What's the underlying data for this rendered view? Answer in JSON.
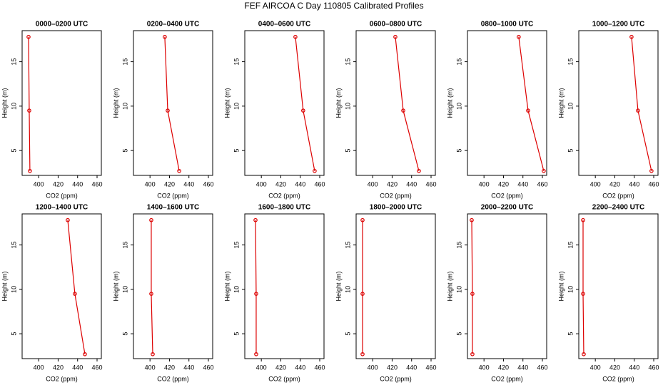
{
  "title": "FEF AIRCOA C  Day 110805  Calibrated Profiles",
  "chart_data": [
    {
      "type": "line",
      "title": "0000–0200 UTC",
      "x_label": "CO2 (ppm)",
      "y_label": "Height (m)",
      "color": "#dd0000",
      "x": [
        389.6,
        390.3,
        391
      ],
      "values": [
        17.8,
        9.5,
        2.7
      ],
      "xlim": [
        383,
        464.4
      ],
      "ylim": [
        2.2,
        18.5
      ],
      "xticks": [
        400,
        420,
        440,
        460
      ],
      "yticks": [
        5,
        10,
        15
      ]
    },
    {
      "type": "line",
      "title": "0200–0400 UTC",
      "x_label": "CO2 (ppm)",
      "y_label": "Height (m)",
      "color": "#dd0000",
      "x": [
        415.2,
        418.2,
        430
      ],
      "values": [
        17.8,
        9.5,
        2.7
      ],
      "xlim": [
        383,
        464.4
      ],
      "ylim": [
        2.2,
        18.5
      ],
      "xticks": [
        400,
        420,
        440,
        460
      ],
      "yticks": [
        5,
        10,
        15
      ]
    },
    {
      "type": "line",
      "title": "0400–0600 UTC",
      "x_label": "CO2 (ppm)",
      "y_label": "Height (m)",
      "color": "#dd0000",
      "x": [
        435,
        443,
        454.8
      ],
      "values": [
        17.8,
        9.5,
        2.7
      ],
      "xlim": [
        383,
        464.4
      ],
      "ylim": [
        2.2,
        18.5
      ],
      "xticks": [
        400,
        420,
        440,
        460
      ],
      "yticks": [
        5,
        10,
        15
      ]
    },
    {
      "type": "line",
      "title": "0600–0800 UTC",
      "x_label": "CO2 (ppm)",
      "y_label": "Height (m)",
      "color": "#dd0000",
      "x": [
        423.3,
        431.4,
        447.5
      ],
      "values": [
        17.8,
        9.5,
        2.7
      ],
      "xlim": [
        383,
        464.4
      ],
      "ylim": [
        2.2,
        18.5
      ],
      "xticks": [
        400,
        420,
        440,
        460
      ],
      "yticks": [
        5,
        10,
        15
      ]
    },
    {
      "type": "line",
      "title": "0800–1000 UTC",
      "x_label": "CO2 (ppm)",
      "y_label": "Height (m)",
      "color": "#dd0000",
      "x": [
        435.7,
        445.3,
        461.4
      ],
      "values": [
        17.8,
        9.5,
        2.7
      ],
      "xlim": [
        383,
        464.4
      ],
      "ylim": [
        2.2,
        18.5
      ],
      "xticks": [
        400,
        420,
        440,
        460
      ],
      "yticks": [
        5,
        10,
        15
      ]
    },
    {
      "type": "line",
      "title": "1000–1200 UTC",
      "x_label": "CO2 (ppm)",
      "y_label": "Height (m)",
      "color": "#dd0000",
      "x": [
        437.2,
        443.8,
        457.7
      ],
      "values": [
        17.8,
        9.5,
        2.7
      ],
      "xlim": [
        383,
        464.4
      ],
      "ylim": [
        2.2,
        18.5
      ],
      "xticks": [
        400,
        420,
        440,
        460
      ],
      "yticks": [
        5,
        10,
        15
      ]
    },
    {
      "type": "line",
      "title": "1200–1400 UTC",
      "x_label": "CO2 (ppm)",
      "y_label": "Height (m)",
      "color": "#dd0000",
      "x": [
        429.9,
        437.2,
        447.5
      ],
      "values": [
        17.8,
        9.5,
        2.7
      ],
      "xlim": [
        383,
        464.4
      ],
      "ylim": [
        2.2,
        18.5
      ],
      "xticks": [
        400,
        420,
        440,
        460
      ],
      "yticks": [
        5,
        10,
        15
      ]
    },
    {
      "type": "line",
      "title": "1400–1600 UTC",
      "x_label": "CO2 (ppm)",
      "y_label": "Height (m)",
      "color": "#dd0000",
      "x": [
        401.3,
        401.3,
        402.8
      ],
      "values": [
        17.8,
        9.5,
        2.7
      ],
      "xlim": [
        383,
        464.4
      ],
      "ylim": [
        2.2,
        18.5
      ],
      "xticks": [
        400,
        420,
        440,
        460
      ],
      "yticks": [
        5,
        10,
        15
      ]
    },
    {
      "type": "line",
      "title": "1600–1800 UTC",
      "x_label": "CO2 (ppm)",
      "y_label": "Height (m)",
      "color": "#dd0000",
      "x": [
        394,
        394.7,
        394.7
      ],
      "values": [
        17.8,
        9.5,
        2.7
      ],
      "xlim": [
        383,
        464.4
      ],
      "ylim": [
        2.2,
        18.5
      ],
      "xticks": [
        400,
        420,
        440,
        460
      ],
      "yticks": [
        5,
        10,
        15
      ]
    },
    {
      "type": "line",
      "title": "1800–2000 UTC",
      "x_label": "CO2 (ppm)",
      "y_label": "Height (m)",
      "color": "#dd0000",
      "x": [
        389.6,
        389.6,
        389.6
      ],
      "values": [
        17.8,
        9.5,
        2.7
      ],
      "xlim": [
        383,
        464.4
      ],
      "ylim": [
        2.2,
        18.5
      ],
      "xticks": [
        400,
        420,
        440,
        460
      ],
      "yticks": [
        5,
        10,
        15
      ]
    },
    {
      "type": "line",
      "title": "2000–2200 UTC",
      "x_label": "CO2 (ppm)",
      "y_label": "Height (m)",
      "color": "#dd0000",
      "x": [
        387.4,
        388.1,
        388.1
      ],
      "values": [
        17.8,
        9.5,
        2.7
      ],
      "xlim": [
        383,
        464.4
      ],
      "ylim": [
        2.2,
        18.5
      ],
      "xticks": [
        400,
        420,
        440,
        460
      ],
      "yticks": [
        5,
        10,
        15
      ]
    },
    {
      "type": "line",
      "title": "2200–2400 UTC",
      "x_label": "CO2 (ppm)",
      "y_label": "Height (m)",
      "color": "#dd0000",
      "x": [
        387.4,
        387.4,
        388.1
      ],
      "values": [
        17.8,
        9.5,
        2.7
      ],
      "xlim": [
        383,
        464.4
      ],
      "ylim": [
        2.2,
        18.5
      ],
      "xticks": [
        400,
        420,
        440,
        460
      ],
      "yticks": [
        5,
        10,
        15
      ]
    }
  ]
}
